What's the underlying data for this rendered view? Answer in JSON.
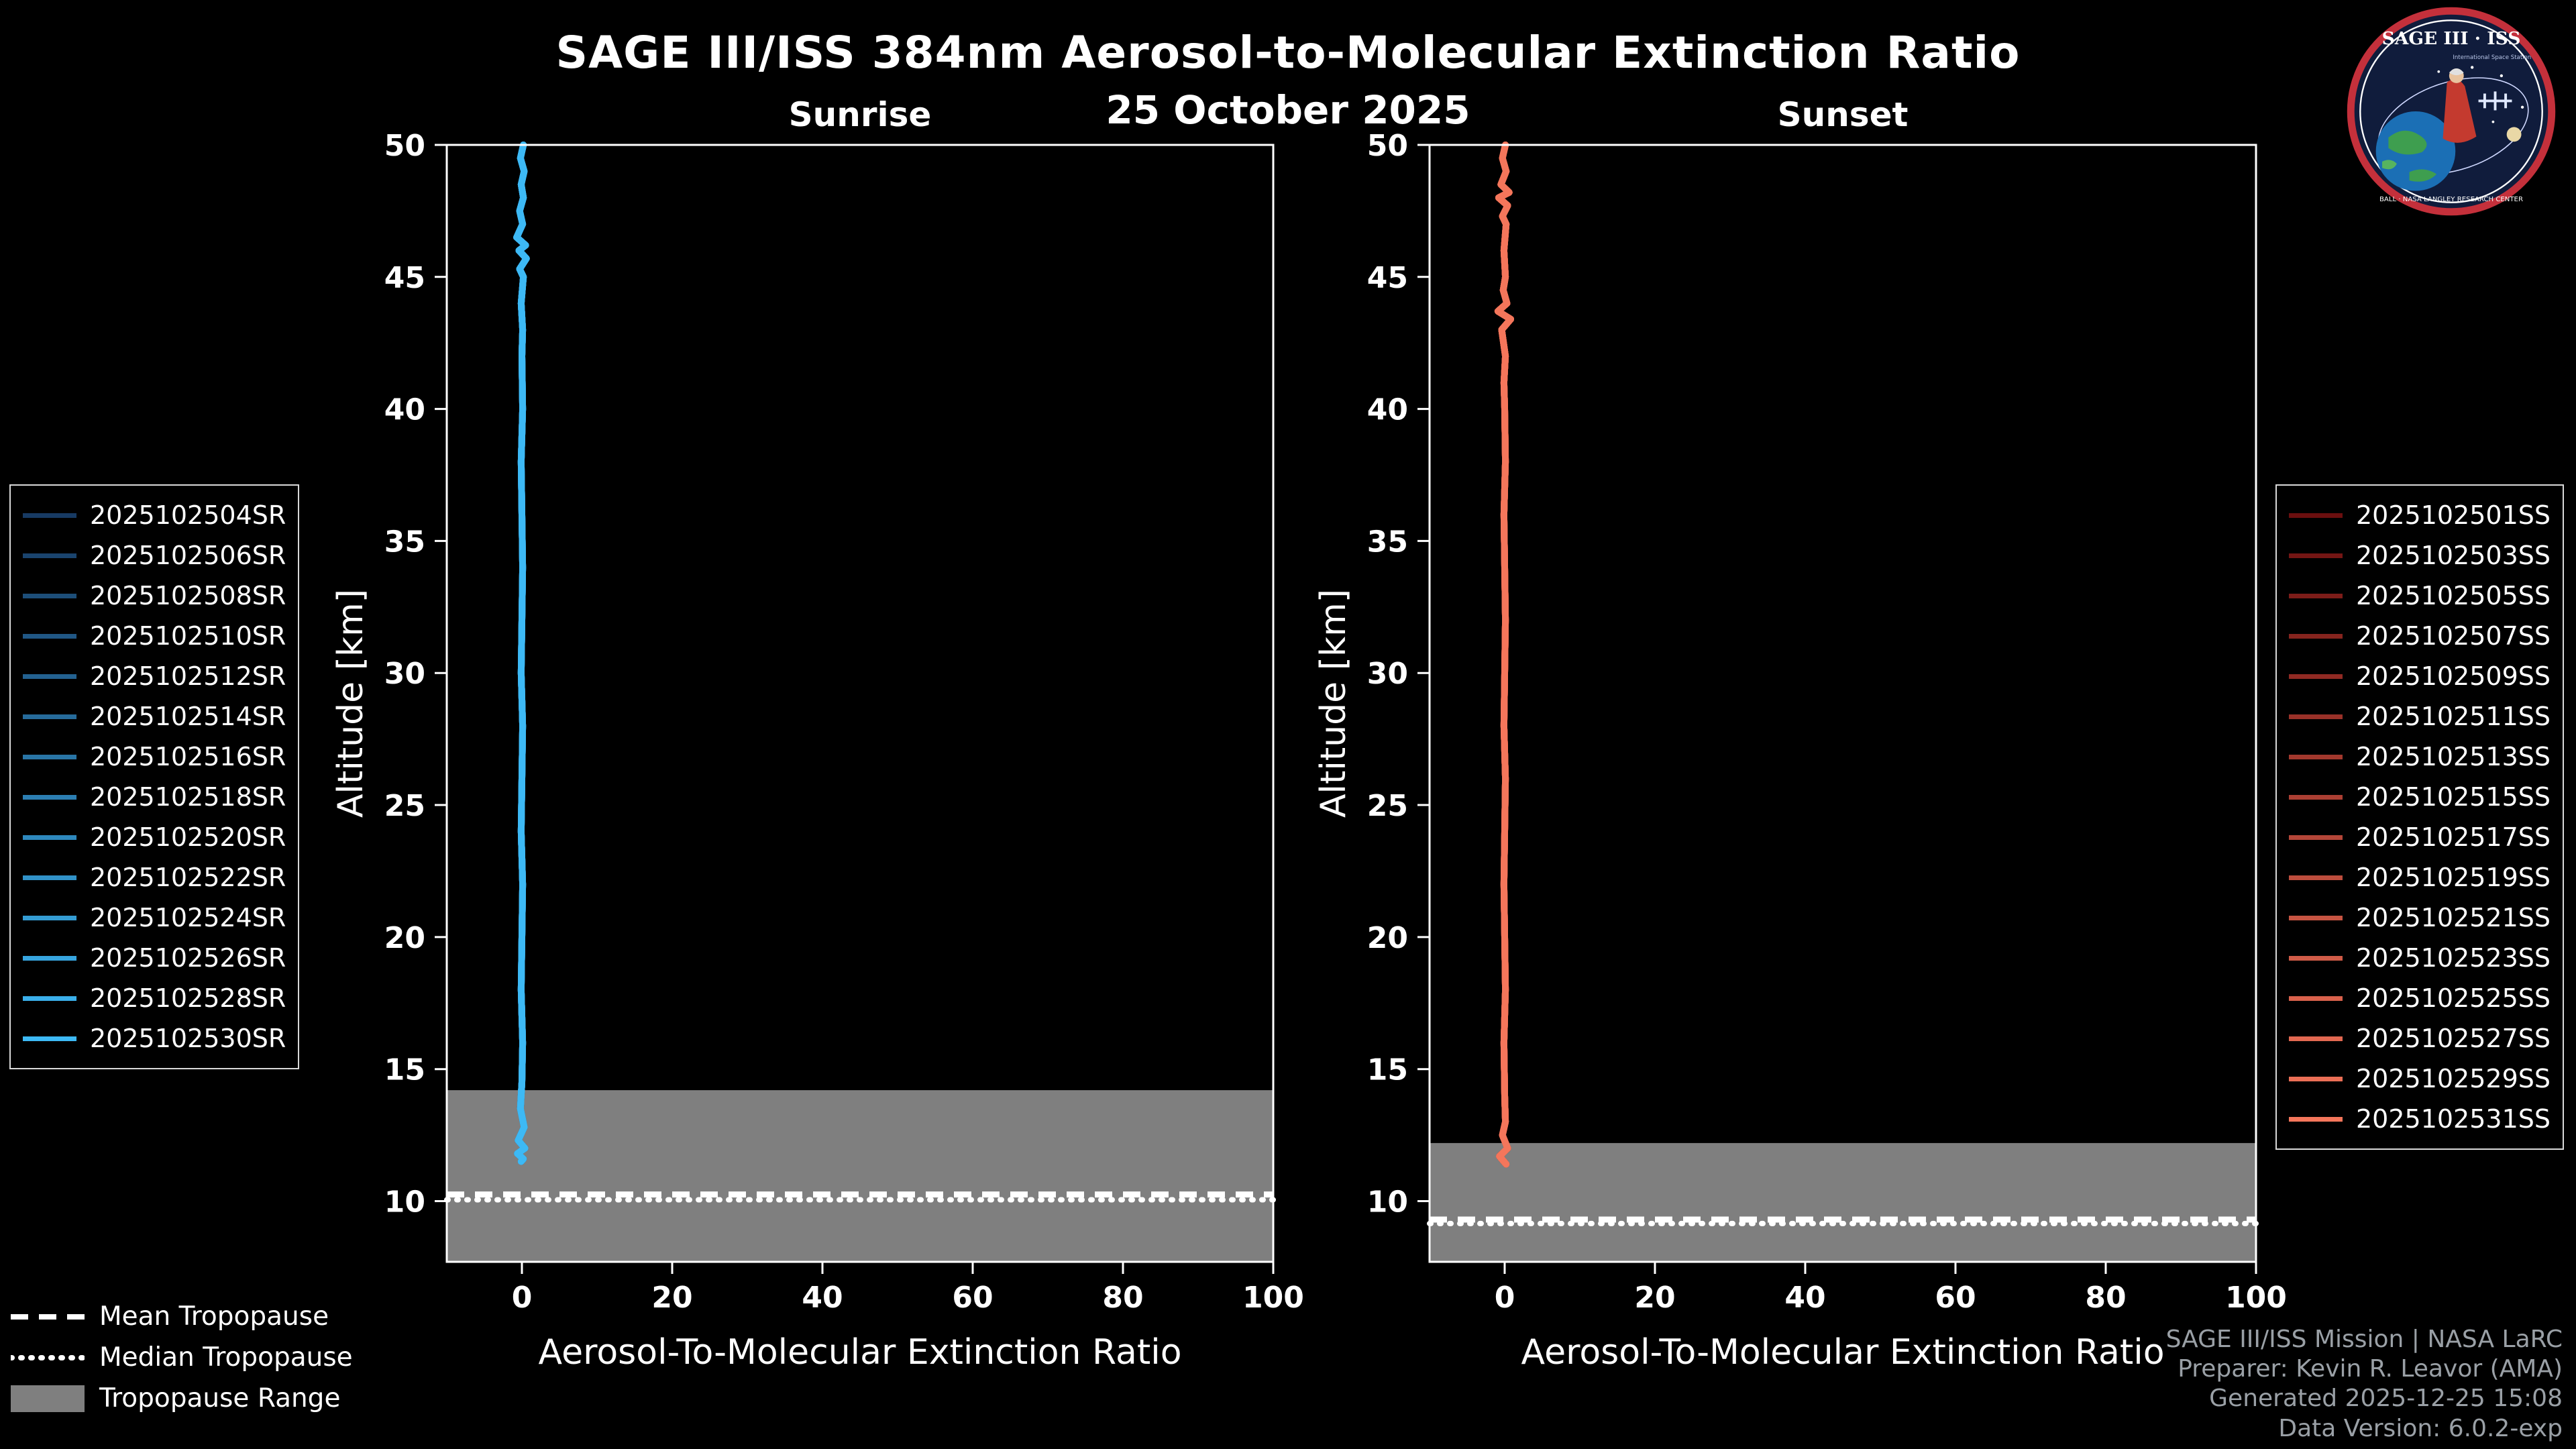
{
  "page": {
    "background": "#000000"
  },
  "header": {
    "title": "SAGE III/ISS 384nm Aerosol-to-Molecular Extinction Ratio",
    "date": "25 October 2025"
  },
  "logo": {
    "name": "SAGE III ISS mission patch",
    "title": "SAGE III · ISS",
    "subtitle": "International Space Station",
    "ring_text": "BALL · NASA LANGLEY RESEARCH CENTER"
  },
  "tropopause_legend": {
    "mean_label": "Mean Tropopause",
    "median_label": "Median Tropopause",
    "range_label": "Tropopause Range",
    "range_color": "#7f7f7f"
  },
  "credits": {
    "line1": "SAGE III/ISS Mission | NASA LaRC",
    "line2": "Preparer: Kevin R. Leavor (AMA)",
    "line3": "Generated 2025-12-25 15:08",
    "line4": "Data Version: 6.0.2-exp"
  },
  "chart_data": [
    {
      "type": "line",
      "title": "Sunrise",
      "xlabel": "Aerosol-To-Molecular Extinction Ratio",
      "ylabel": "Altitude [km]",
      "xlim": [
        -10,
        100
      ],
      "ylim": [
        7.7,
        50
      ],
      "xticks": [
        0,
        20,
        40,
        60,
        80,
        100
      ],
      "yticks": [
        10,
        15,
        20,
        25,
        30,
        35,
        40,
        45,
        50
      ],
      "grid": false,
      "legend_position": "outside-left",
      "series": [
        {
          "label": "2025102504SR",
          "color": "#173a63"
        },
        {
          "label": "2025102506SR",
          "color": "#1a446e"
        },
        {
          "label": "2025102508SR",
          "color": "#1d4e79"
        },
        {
          "label": "2025102510SR",
          "color": "#205785"
        },
        {
          "label": "2025102512SR",
          "color": "#236190"
        },
        {
          "label": "2025102514SR",
          "color": "#266b9b"
        },
        {
          "label": "2025102516SR",
          "color": "#2975a6"
        },
        {
          "label": "2025102518SR",
          "color": "#2c7eb2"
        },
        {
          "label": "2025102520SR",
          "color": "#2e88bd"
        },
        {
          "label": "2025102522SR",
          "color": "#3192c8"
        },
        {
          "label": "2025102524SR",
          "color": "#349cd3"
        },
        {
          "label": "2025102526SR",
          "color": "#37a5df"
        },
        {
          "label": "2025102528SR",
          "color": "#3aafea"
        },
        {
          "label": "2025102530SR",
          "color": "#3db9f5"
        }
      ],
      "profile_shared_by_all_series": true,
      "profile": {
        "note": "All sunrise profiles overlap; extinction ratio ~0 from ~11.5 km to 50 km",
        "altitude_km": [
          50,
          49.5,
          49,
          48.5,
          48,
          47.5,
          47,
          46.5,
          46.2,
          46,
          45.7,
          45.3,
          45,
          44,
          43,
          42,
          40,
          38,
          36,
          34,
          32,
          30,
          28,
          26,
          24,
          22,
          20,
          18,
          16,
          14.5,
          13.5,
          12.8,
          12.3,
          12,
          11.8,
          11.6,
          11.5
        ],
        "ratio": [
          0.2,
          -0.2,
          0.3,
          -0.1,
          0.2,
          -0.3,
          0.1,
          -0.7,
          0.5,
          -0.4,
          0.6,
          -0.3,
          0.2,
          -0.1,
          0.1,
          0,
          0.1,
          -0.1,
          0,
          0.1,
          0,
          -0.1,
          0.1,
          0,
          -0.1,
          0.1,
          0,
          -0.1,
          0.1,
          0,
          -0.2,
          0.3,
          -0.5,
          0.4,
          -0.6,
          0.2,
          -0.1
        ]
      },
      "tropopause": {
        "mean_km": 10.25,
        "median_km": 10.05,
        "range_top_km": 14.2,
        "range_bottom_km": 7.7,
        "range_color": "#7f7f7f"
      }
    },
    {
      "type": "line",
      "title": "Sunset",
      "xlabel": "Aerosol-To-Molecular Extinction Ratio",
      "ylabel": "Altitude [km]",
      "xlim": [
        -10,
        100
      ],
      "ylim": [
        7.7,
        50
      ],
      "xticks": [
        0,
        20,
        40,
        60,
        80,
        100
      ],
      "yticks": [
        10,
        15,
        20,
        25,
        30,
        35,
        40,
        45,
        50
      ],
      "grid": false,
      "legend_position": "outside-right",
      "series": [
        {
          "label": "2025102501SS",
          "color": "#6b0f0f"
        },
        {
          "label": "2025102503SS",
          "color": "#741614"
        },
        {
          "label": "2025102505SS",
          "color": "#7d1d19"
        },
        {
          "label": "2025102507SS",
          "color": "#86241e"
        },
        {
          "label": "2025102509SS",
          "color": "#902a23"
        },
        {
          "label": "2025102511SS",
          "color": "#993128"
        },
        {
          "label": "2025102513SS",
          "color": "#a2382d"
        },
        {
          "label": "2025102515SS",
          "color": "#ab3f33"
        },
        {
          "label": "2025102517SS",
          "color": "#b44638"
        },
        {
          "label": "2025102519SS",
          "color": "#bd4d3d"
        },
        {
          "label": "2025102521SS",
          "color": "#c65442"
        },
        {
          "label": "2025102523SS",
          "color": "#cf5b47"
        },
        {
          "label": "2025102525SS",
          "color": "#d9614c"
        },
        {
          "label": "2025102527SS",
          "color": "#e26851"
        },
        {
          "label": "2025102529SS",
          "color": "#eb6f56"
        },
        {
          "label": "2025102531SS",
          "color": "#f4765b"
        }
      ],
      "profile_shared_by_all_series": true,
      "profile": {
        "note": "All sunset profiles overlap; extinction ratio ~0 from ~11.4 km to 50 km",
        "altitude_km": [
          50,
          49.5,
          49,
          48.5,
          48.2,
          48,
          47.7,
          47.3,
          47,
          46,
          45,
          44.5,
          44,
          43.7,
          43.4,
          43,
          42,
          41,
          40,
          38,
          36,
          34,
          32,
          30,
          28,
          26,
          24,
          22,
          20,
          18,
          16,
          14,
          13,
          12.5,
          12,
          11.7,
          11.4
        ],
        "ratio": [
          0.1,
          -0.3,
          0.2,
          -0.5,
          0.6,
          -0.8,
          0.4,
          -0.3,
          0.2,
          -0.1,
          0.1,
          -0.2,
          0.3,
          -0.9,
          0.8,
          -0.4,
          0.1,
          -0.1,
          0,
          0.1,
          -0.1,
          0,
          0.1,
          0,
          -0.1,
          0.1,
          0,
          -0.1,
          0,
          0.1,
          -0.1,
          0,
          0.1,
          -0.3,
          0.4,
          -0.7,
          0.2
        ]
      },
      "tropopause": {
        "mean_km": 9.3,
        "median_km": 9.15,
        "range_top_km": 12.2,
        "range_bottom_km": 7.7,
        "range_color": "#7f7f7f"
      }
    }
  ]
}
